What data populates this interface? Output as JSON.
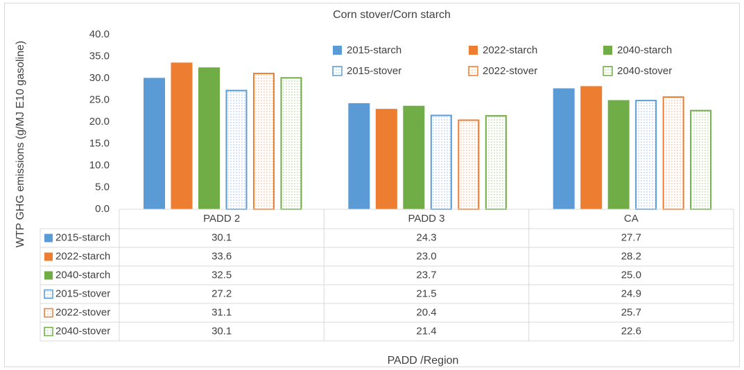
{
  "chart_data": {
    "type": "bar",
    "title": "Corn stover/Corn starch",
    "y_label": "WTP GHG emissions (g/MJ E10 gasoline)",
    "x_label": "PADD /Region",
    "categories": [
      "PADD 2",
      "PADD 3",
      "CA"
    ],
    "ylim": [
      0,
      40
    ],
    "yticks": [
      {
        "value": 0,
        "label": "0.0"
      },
      {
        "value": 5,
        "label": "5.0"
      },
      {
        "value": 10,
        "label": "10.0"
      },
      {
        "value": 15,
        "label": "15.0"
      },
      {
        "value": 20,
        "label": "20.0"
      },
      {
        "value": 25,
        "label": "25.0"
      },
      {
        "value": 30,
        "label": "30.0"
      },
      {
        "value": 35,
        "label": "35.0"
      },
      {
        "value": 40,
        "label": "40.0"
      }
    ],
    "grid": false,
    "legend": "top-right",
    "series": [
      {
        "name": "2015-starch",
        "color": "#5b9bd5",
        "style": "solid",
        "values": [
          30.1,
          24.3,
          27.7
        ],
        "value_labels": [
          "30.1",
          "24.3",
          "27.7"
        ]
      },
      {
        "name": "2022-starch",
        "color": "#ed7d31",
        "style": "solid",
        "values": [
          33.6,
          23.0,
          28.2
        ],
        "value_labels": [
          "33.6",
          "23.0",
          "28.2"
        ]
      },
      {
        "name": "2040-starch",
        "color": "#70ad47",
        "style": "solid",
        "values": [
          32.5,
          23.7,
          25.0
        ],
        "value_labels": [
          "32.5",
          "23.7",
          "25.0"
        ]
      },
      {
        "name": "2015-stover",
        "color": "#5b9bd5",
        "style": "dotted-outline",
        "values": [
          27.2,
          21.5,
          24.9
        ],
        "value_labels": [
          "27.2",
          "21.5",
          "24.9"
        ]
      },
      {
        "name": "2022-stover",
        "color": "#ed7d31",
        "style": "dotted-outline",
        "values": [
          31.1,
          20.4,
          25.7
        ],
        "value_labels": [
          "31.1",
          "20.4",
          "25.7"
        ]
      },
      {
        "name": "2040-stover",
        "color": "#70ad47",
        "style": "dotted-outline",
        "values": [
          30.1,
          21.4,
          22.6
        ],
        "value_labels": [
          "30.1",
          "21.4",
          "22.6"
        ]
      }
    ]
  }
}
